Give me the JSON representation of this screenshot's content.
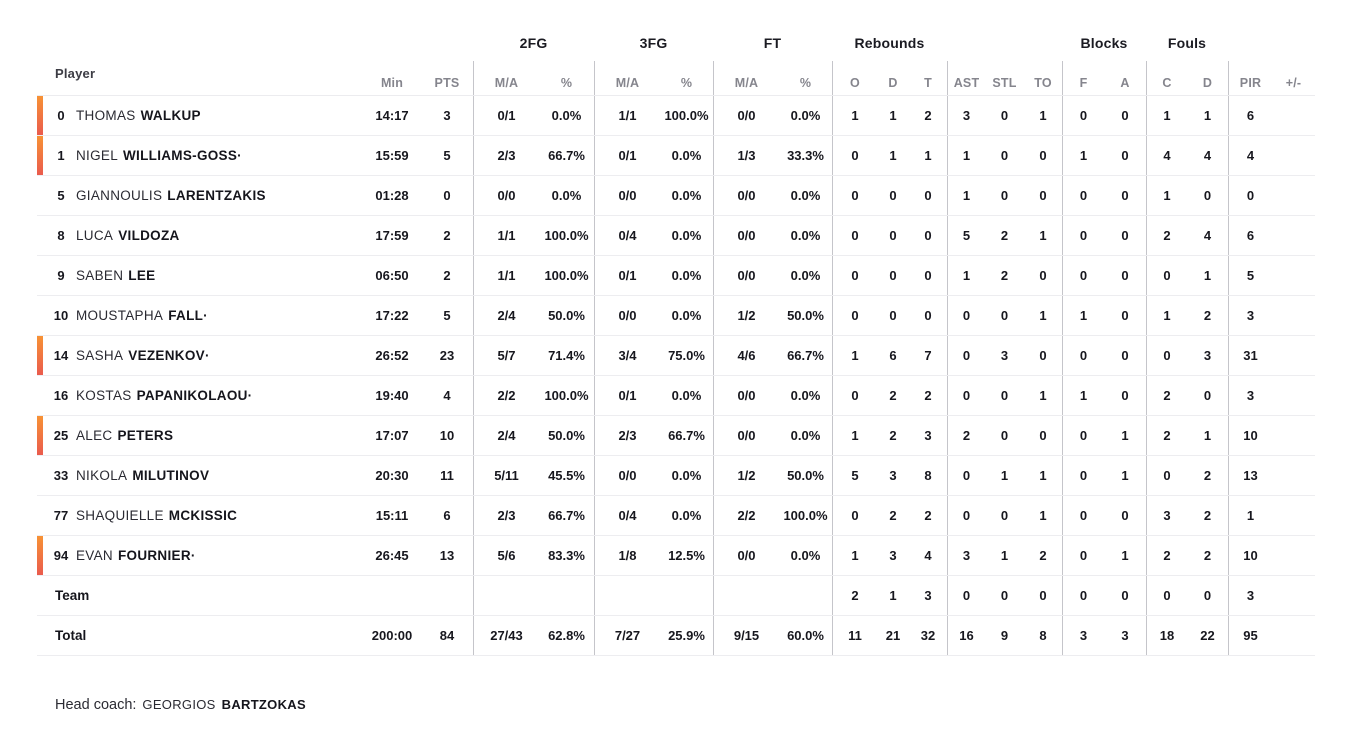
{
  "table": {
    "player_header": "Player",
    "groups": [
      {
        "label": "2FG",
        "cols": [
          "fg2_ma",
          "fg2_pct"
        ]
      },
      {
        "label": "3FG",
        "cols": [
          "fg3_ma",
          "fg3_pct"
        ]
      },
      {
        "label": "FT",
        "cols": [
          "ft_ma",
          "ft_pct"
        ]
      },
      {
        "label": "Rebounds",
        "cols": [
          "reb_o",
          "reb_d",
          "reb_t"
        ]
      },
      {
        "label": "Blocks",
        "cols": [
          "blk_f",
          "blk_a"
        ]
      },
      {
        "label": "Fouls",
        "cols": [
          "foul_c",
          "foul_d"
        ]
      }
    ],
    "column_labels": {
      "min": "Min",
      "pts": "PTS",
      "fg2_ma": "M/A",
      "fg2_pct": "%",
      "fg3_ma": "M/A",
      "fg3_pct": "%",
      "ft_ma": "M/A",
      "ft_pct": "%",
      "reb_o": "O",
      "reb_d": "D",
      "reb_t": "T",
      "ast": "AST",
      "stl": "STL",
      "to": "TO",
      "blk_f": "F",
      "blk_a": "A",
      "foul_c": "C",
      "foul_d": "D",
      "pir": "PIR",
      "pm": "+/-"
    },
    "rows": [
      {
        "number": "0",
        "first": "THOMAS",
        "last": "WALKUP",
        "starter": true,
        "min": "14:17",
        "pts": "3",
        "fg2_ma": "0/1",
        "fg2_pct": "0.0%",
        "fg3_ma": "1/1",
        "fg3_pct": "100.0%",
        "ft_ma": "0/0",
        "ft_pct": "0.0%",
        "reb_o": "1",
        "reb_d": "1",
        "reb_t": "2",
        "ast": "3",
        "stl": "0",
        "to": "1",
        "blk_f": "0",
        "blk_a": "0",
        "foul_c": "1",
        "foul_d": "1",
        "pir": "6",
        "pm": ""
      },
      {
        "number": "1",
        "first": "NIGEL",
        "last": "WILLIAMS-GOSS·",
        "starter": true,
        "min": "15:59",
        "pts": "5",
        "fg2_ma": "2/3",
        "fg2_pct": "66.7%",
        "fg3_ma": "0/1",
        "fg3_pct": "0.0%",
        "ft_ma": "1/3",
        "ft_pct": "33.3%",
        "reb_o": "0",
        "reb_d": "1",
        "reb_t": "1",
        "ast": "1",
        "stl": "0",
        "to": "0",
        "blk_f": "1",
        "blk_a": "0",
        "foul_c": "4",
        "foul_d": "4",
        "pir": "4",
        "pm": ""
      },
      {
        "number": "5",
        "first": "GIANNOULIS",
        "last": "LARENTZAKIS",
        "starter": false,
        "min": "01:28",
        "pts": "0",
        "fg2_ma": "0/0",
        "fg2_pct": "0.0%",
        "fg3_ma": "0/0",
        "fg3_pct": "0.0%",
        "ft_ma": "0/0",
        "ft_pct": "0.0%",
        "reb_o": "0",
        "reb_d": "0",
        "reb_t": "0",
        "ast": "1",
        "stl": "0",
        "to": "0",
        "blk_f": "0",
        "blk_a": "0",
        "foul_c": "1",
        "foul_d": "0",
        "pir": "0",
        "pm": ""
      },
      {
        "number": "8",
        "first": "LUCA",
        "last": "VILDOZA",
        "starter": false,
        "min": "17:59",
        "pts": "2",
        "fg2_ma": "1/1",
        "fg2_pct": "100.0%",
        "fg3_ma": "0/4",
        "fg3_pct": "0.0%",
        "ft_ma": "0/0",
        "ft_pct": "0.0%",
        "reb_o": "0",
        "reb_d": "0",
        "reb_t": "0",
        "ast": "5",
        "stl": "2",
        "to": "1",
        "blk_f": "0",
        "blk_a": "0",
        "foul_c": "2",
        "foul_d": "4",
        "pir": "6",
        "pm": ""
      },
      {
        "number": "9",
        "first": "SABEN",
        "last": "LEE",
        "starter": false,
        "min": "06:50",
        "pts": "2",
        "fg2_ma": "1/1",
        "fg2_pct": "100.0%",
        "fg3_ma": "0/1",
        "fg3_pct": "0.0%",
        "ft_ma": "0/0",
        "ft_pct": "0.0%",
        "reb_o": "0",
        "reb_d": "0",
        "reb_t": "0",
        "ast": "1",
        "stl": "2",
        "to": "0",
        "blk_f": "0",
        "blk_a": "0",
        "foul_c": "0",
        "foul_d": "1",
        "pir": "5",
        "pm": ""
      },
      {
        "number": "10",
        "first": "MOUSTAPHA",
        "last": "FALL·",
        "starter": false,
        "min": "17:22",
        "pts": "5",
        "fg2_ma": "2/4",
        "fg2_pct": "50.0%",
        "fg3_ma": "0/0",
        "fg3_pct": "0.0%",
        "ft_ma": "1/2",
        "ft_pct": "50.0%",
        "reb_o": "0",
        "reb_d": "0",
        "reb_t": "0",
        "ast": "0",
        "stl": "0",
        "to": "1",
        "blk_f": "1",
        "blk_a": "0",
        "foul_c": "1",
        "foul_d": "2",
        "pir": "3",
        "pm": ""
      },
      {
        "number": "14",
        "first": "SASHA",
        "last": "VEZENKOV·",
        "starter": true,
        "min": "26:52",
        "pts": "23",
        "fg2_ma": "5/7",
        "fg2_pct": "71.4%",
        "fg3_ma": "3/4",
        "fg3_pct": "75.0%",
        "ft_ma": "4/6",
        "ft_pct": "66.7%",
        "reb_o": "1",
        "reb_d": "6",
        "reb_t": "7",
        "ast": "0",
        "stl": "3",
        "to": "0",
        "blk_f": "0",
        "blk_a": "0",
        "foul_c": "0",
        "foul_d": "3",
        "pir": "31",
        "pm": ""
      },
      {
        "number": "16",
        "first": "KOSTAS",
        "last": "PAPANIKOLAOU·",
        "starter": false,
        "min": "19:40",
        "pts": "4",
        "fg2_ma": "2/2",
        "fg2_pct": "100.0%",
        "fg3_ma": "0/1",
        "fg3_pct": "0.0%",
        "ft_ma": "0/0",
        "ft_pct": "0.0%",
        "reb_o": "0",
        "reb_d": "2",
        "reb_t": "2",
        "ast": "0",
        "stl": "0",
        "to": "1",
        "blk_f": "1",
        "blk_a": "0",
        "foul_c": "2",
        "foul_d": "0",
        "pir": "3",
        "pm": ""
      },
      {
        "number": "25",
        "first": "ALEC",
        "last": "PETERS",
        "starter": true,
        "min": "17:07",
        "pts": "10",
        "fg2_ma": "2/4",
        "fg2_pct": "50.0%",
        "fg3_ma": "2/3",
        "fg3_pct": "66.7%",
        "ft_ma": "0/0",
        "ft_pct": "0.0%",
        "reb_o": "1",
        "reb_d": "2",
        "reb_t": "3",
        "ast": "2",
        "stl": "0",
        "to": "0",
        "blk_f": "0",
        "blk_a": "1",
        "foul_c": "2",
        "foul_d": "1",
        "pir": "10",
        "pm": ""
      },
      {
        "number": "33",
        "first": "NIKOLA",
        "last": "MILUTINOV",
        "starter": false,
        "min": "20:30",
        "pts": "11",
        "fg2_ma": "5/11",
        "fg2_pct": "45.5%",
        "fg3_ma": "0/0",
        "fg3_pct": "0.0%",
        "ft_ma": "1/2",
        "ft_pct": "50.0%",
        "reb_o": "5",
        "reb_d": "3",
        "reb_t": "8",
        "ast": "0",
        "stl": "1",
        "to": "1",
        "blk_f": "0",
        "blk_a": "1",
        "foul_c": "0",
        "foul_d": "2",
        "pir": "13",
        "pm": ""
      },
      {
        "number": "77",
        "first": "SHAQUIELLE",
        "last": "MCKISSIC",
        "starter": false,
        "min": "15:11",
        "pts": "6",
        "fg2_ma": "2/3",
        "fg2_pct": "66.7%",
        "fg3_ma": "0/4",
        "fg3_pct": "0.0%",
        "ft_ma": "2/2",
        "ft_pct": "100.0%",
        "reb_o": "0",
        "reb_d": "2",
        "reb_t": "2",
        "ast": "0",
        "stl": "0",
        "to": "1",
        "blk_f": "0",
        "blk_a": "0",
        "foul_c": "3",
        "foul_d": "2",
        "pir": "1",
        "pm": ""
      },
      {
        "number": "94",
        "first": "EVAN",
        "last": "FOURNIER·",
        "starter": true,
        "min": "26:45",
        "pts": "13",
        "fg2_ma": "5/6",
        "fg2_pct": "83.3%",
        "fg3_ma": "1/8",
        "fg3_pct": "12.5%",
        "ft_ma": "0/0",
        "ft_pct": "0.0%",
        "reb_o": "1",
        "reb_d": "3",
        "reb_t": "4",
        "ast": "3",
        "stl": "1",
        "to": "2",
        "blk_f": "0",
        "blk_a": "1",
        "foul_c": "2",
        "foul_d": "2",
        "pir": "10",
        "pm": ""
      },
      {
        "label": "Team",
        "min": "",
        "pts": "",
        "fg2_ma": "",
        "fg2_pct": "",
        "fg3_ma": "",
        "fg3_pct": "",
        "ft_ma": "",
        "ft_pct": "",
        "reb_o": "2",
        "reb_d": "1",
        "reb_t": "3",
        "ast": "0",
        "stl": "0",
        "to": "0",
        "blk_f": "0",
        "blk_a": "0",
        "foul_c": "0",
        "foul_d": "0",
        "pir": "3",
        "pm": ""
      },
      {
        "label": "Total",
        "min": "200:00",
        "pts": "84",
        "fg2_ma": "27/43",
        "fg2_pct": "62.8%",
        "fg3_ma": "7/27",
        "fg3_pct": "25.9%",
        "ft_ma": "9/15",
        "ft_pct": "60.0%",
        "reb_o": "11",
        "reb_d": "21",
        "reb_t": "32",
        "ast": "16",
        "stl": "9",
        "to": "8",
        "blk_f": "3",
        "blk_a": "3",
        "foul_c": "18",
        "foul_d": "22",
        "pir": "95",
        "pm": ""
      }
    ]
  },
  "footer": {
    "head_coach_label": "Head coach:",
    "coach_first": "GEORGIOS",
    "coach_last": "BARTZOKAS"
  },
  "colors": {
    "starter_bar_top": "#f79235",
    "starter_bar_bottom": "#ea5b4d",
    "header_gray": "#85858d",
    "divider": "#c5c5ca",
    "row_border": "#ededf0",
    "text_dark": "#17171e"
  }
}
